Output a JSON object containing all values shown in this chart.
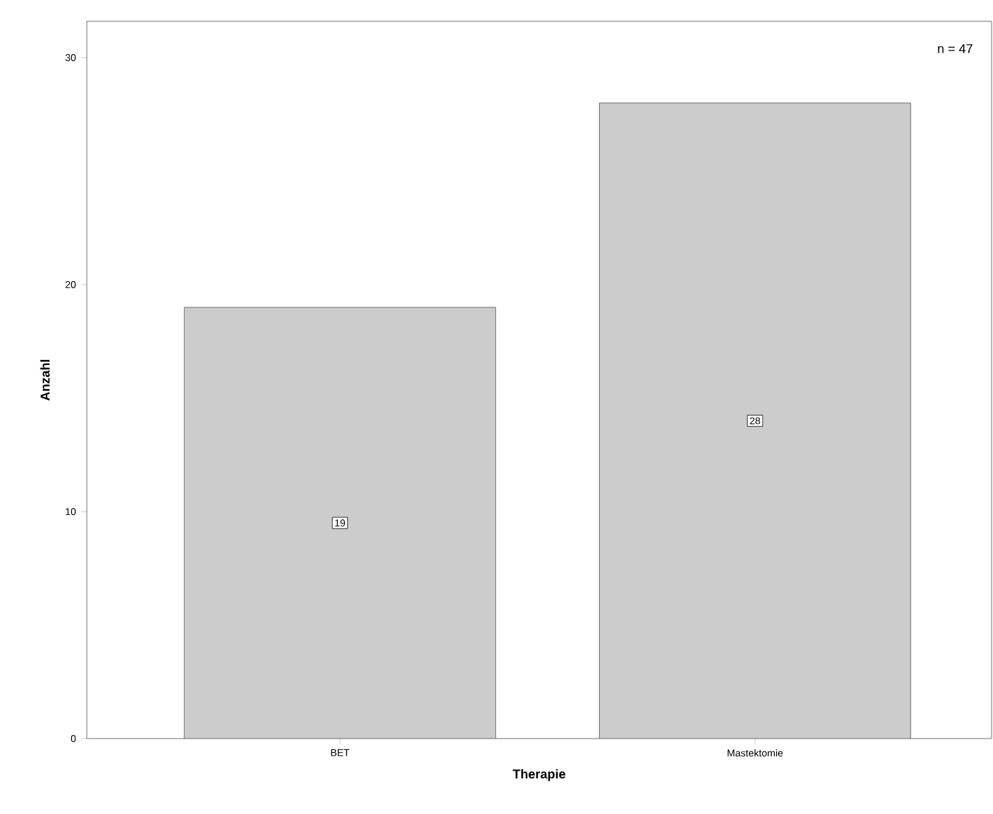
{
  "chart_data": {
    "type": "bar",
    "xlabel": "Therapie",
    "ylabel": "Anzahl",
    "categories": [
      "BET",
      "Mastektomie"
    ],
    "values": [
      19,
      28
    ],
    "color": "#cccccc",
    "ylim": [
      0,
      31.6
    ],
    "yticks": [
      0,
      10,
      20,
      30
    ],
    "data_labels": true,
    "grid": false,
    "annotations": [
      "n = 47"
    ]
  }
}
